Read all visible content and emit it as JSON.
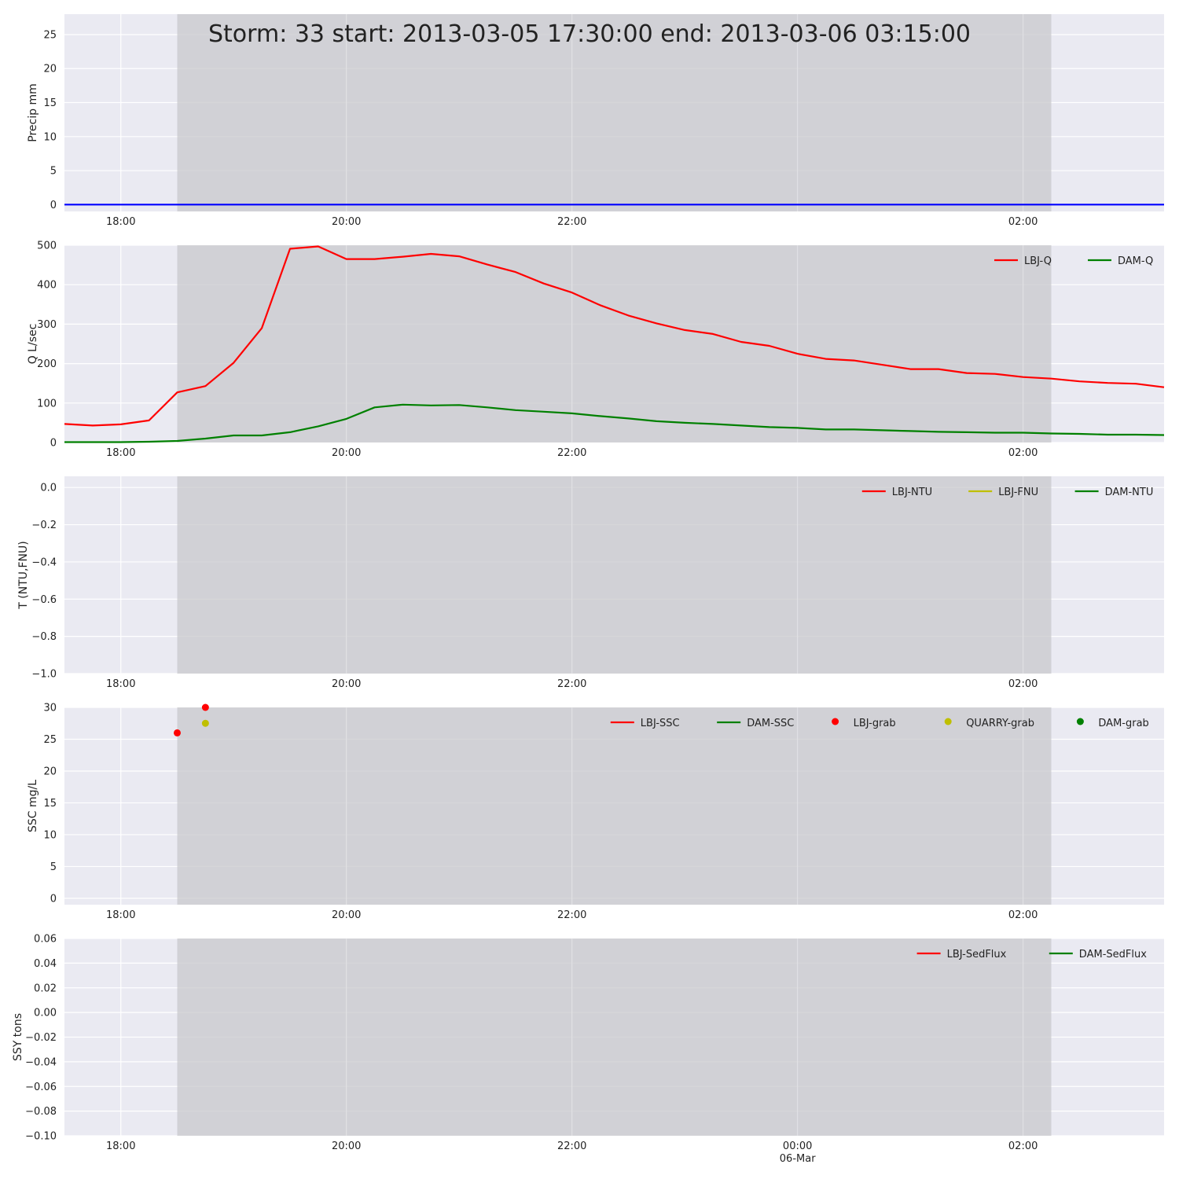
{
  "figure": {
    "title": "Storm: 33 start: 2013-03-05 17:30:00 end: 2013-03-06 03:15:00",
    "x_range": [
      "2013-03-05 17:30",
      "2013-03-06 03:15"
    ],
    "storm_window": [
      "2013-03-05 18:30",
      "2013-03-06 02:15"
    ],
    "x_ticks": [
      {
        "time": "2013-03-05 18:00",
        "label": "18:00"
      },
      {
        "time": "2013-03-05 20:00",
        "label": "20:00"
      },
      {
        "time": "2013-03-05 22:00",
        "label": "22:00"
      },
      {
        "time": "2013-03-06 00:00",
        "label": ""
      },
      {
        "time": "2013-03-06 02:00",
        "label": "02:00"
      }
    ],
    "bottom_extra_ticks": [
      {
        "time": "2013-03-06 00:00",
        "label": "00:00",
        "sublabel": "06-Mar"
      }
    ],
    "colors": {
      "background": "#eaeaf2",
      "shade": "#c8c8cc",
      "grid": "#ffffff",
      "red": "#ff0000",
      "green": "#008000",
      "yellow": "#bfbf00",
      "blue": "#0000ff"
    }
  },
  "chart_data": [
    {
      "type": "line",
      "ylabel": "Precip mm",
      "ylim": [
        -1,
        28
      ],
      "yticks": [
        0,
        5,
        10,
        15,
        20,
        25
      ],
      "legend": [],
      "series": [
        {
          "name": "",
          "color": "#0000ff",
          "x": [
            "2013-03-05 17:30",
            "2013-03-06 03:15"
          ],
          "y": [
            0,
            0
          ]
        }
      ]
    },
    {
      "type": "line",
      "ylabel": "Q L/sec",
      "ylim": [
        0,
        500
      ],
      "yticks": [
        0,
        100,
        200,
        300,
        400,
        500
      ],
      "legend": [
        "LBJ-Q",
        "DAM-Q"
      ],
      "series": [
        {
          "name": "LBJ-Q",
          "color": "#ff0000",
          "x": [
            "2013-03-05 17:30",
            "2013-03-05 17:45",
            "2013-03-05 18:00",
            "2013-03-05 18:15",
            "2013-03-05 18:30",
            "2013-03-05 18:45",
            "2013-03-05 19:00",
            "2013-03-05 19:15",
            "2013-03-05 19:30",
            "2013-03-05 19:45",
            "2013-03-05 20:00",
            "2013-03-05 20:15",
            "2013-03-05 20:30",
            "2013-03-05 20:45",
            "2013-03-05 21:00",
            "2013-03-05 21:15",
            "2013-03-05 21:30",
            "2013-03-05 21:45",
            "2013-03-05 22:00",
            "2013-03-05 22:15",
            "2013-03-05 22:30",
            "2013-03-05 22:45",
            "2013-03-05 23:00",
            "2013-03-05 23:15",
            "2013-03-05 23:30",
            "2013-03-05 23:45",
            "2013-03-06 00:00",
            "2013-03-06 00:15",
            "2013-03-06 00:30",
            "2013-03-06 00:45",
            "2013-03-06 01:00",
            "2013-03-06 01:15",
            "2013-03-06 01:30",
            "2013-03-06 01:45",
            "2013-03-06 02:00",
            "2013-03-06 02:15",
            "2013-03-06 02:30",
            "2013-03-06 02:45",
            "2013-03-06 03:00",
            "2013-03-06 03:15"
          ],
          "y": [
            47,
            43,
            46,
            56,
            127,
            143,
            202,
            290,
            491,
            497,
            465,
            465,
            471,
            478,
            472,
            451,
            432,
            403,
            380,
            348,
            322,
            302,
            285,
            275,
            255,
            245,
            225,
            212,
            208,
            197,
            186,
            186,
            176,
            174,
            166,
            162,
            155,
            151,
            149,
            140
          ]
        },
        {
          "name": "DAM-Q",
          "color": "#008000",
          "x": [
            "2013-03-05 17:30",
            "2013-03-05 17:45",
            "2013-03-05 18:00",
            "2013-03-05 18:15",
            "2013-03-05 18:30",
            "2013-03-05 18:45",
            "2013-03-05 19:00",
            "2013-03-05 19:15",
            "2013-03-05 19:30",
            "2013-03-05 19:45",
            "2013-03-05 20:00",
            "2013-03-05 20:15",
            "2013-03-05 20:30",
            "2013-03-05 20:45",
            "2013-03-05 21:00",
            "2013-03-05 21:15",
            "2013-03-05 21:30",
            "2013-03-05 21:45",
            "2013-03-05 22:00",
            "2013-03-05 22:15",
            "2013-03-05 22:30",
            "2013-03-05 22:45",
            "2013-03-05 23:00",
            "2013-03-05 23:15",
            "2013-03-05 23:30",
            "2013-03-05 23:45",
            "2013-03-06 00:00",
            "2013-03-06 00:15",
            "2013-03-06 00:30",
            "2013-03-06 00:45",
            "2013-03-06 01:00",
            "2013-03-06 01:15",
            "2013-03-06 01:30",
            "2013-03-06 01:45",
            "2013-03-06 02:00",
            "2013-03-06 02:15",
            "2013-03-06 02:30",
            "2013-03-06 02:45",
            "2013-03-06 03:00",
            "2013-03-06 03:15"
          ],
          "y": [
            1,
            1,
            1,
            2,
            4,
            10,
            18,
            18,
            26,
            41,
            60,
            89,
            96,
            94,
            95,
            89,
            82,
            78,
            74,
            67,
            61,
            54,
            50,
            47,
            43,
            39,
            37,
            33,
            33,
            31,
            29,
            27,
            26,
            25,
            25,
            23,
            22,
            20,
            20,
            19
          ]
        }
      ]
    },
    {
      "type": "line",
      "ylabel": "T (NTU,FNU)",
      "ylim": [
        -1.0,
        0.06
      ],
      "yticks": [
        -1.0,
        -0.8,
        -0.6,
        -0.4,
        -0.2,
        0.0
      ],
      "ytick_labels": [
        "−1.0",
        "−0.8",
        "−0.6",
        "−0.4",
        "−0.2",
        "0.0"
      ],
      "legend": [
        "LBJ-NTU",
        "LBJ-FNU",
        "DAM-NTU"
      ],
      "series": [
        {
          "name": "LBJ-NTU",
          "color": "#ff0000",
          "x": [],
          "y": []
        },
        {
          "name": "LBJ-FNU",
          "color": "#bfbf00",
          "x": [],
          "y": []
        },
        {
          "name": "DAM-NTU",
          "color": "#008000",
          "x": [],
          "y": []
        }
      ]
    },
    {
      "type": "scatter",
      "ylabel": "SSC mg/L",
      "ylim": [
        -1,
        30
      ],
      "yticks": [
        0,
        5,
        10,
        15,
        20,
        25,
        30
      ],
      "legend": [
        "LBJ-SSC",
        "DAM-SSC",
        "LBJ-grab",
        "QUARRY-grab",
        "DAM-grab"
      ],
      "series": [
        {
          "name": "LBJ-SSC",
          "color": "#ff0000",
          "kind": "line",
          "x": [],
          "y": []
        },
        {
          "name": "DAM-SSC",
          "color": "#008000",
          "kind": "line",
          "x": [],
          "y": []
        },
        {
          "name": "LBJ-grab",
          "color": "#ff0000",
          "kind": "points",
          "x": [
            "2013-03-05 18:30",
            "2013-03-05 18:45"
          ],
          "y": [
            26,
            30
          ]
        },
        {
          "name": "QUARRY-grab",
          "color": "#bfbf00",
          "kind": "points",
          "x": [
            "2013-03-05 18:45"
          ],
          "y": [
            27.5
          ]
        },
        {
          "name": "DAM-grab",
          "color": "#008000",
          "kind": "points",
          "x": [],
          "y": []
        }
      ]
    },
    {
      "type": "line",
      "ylabel": "SSY tons",
      "ylim": [
        -0.1,
        0.06
      ],
      "yticks": [
        -0.1,
        -0.08,
        -0.06,
        -0.04,
        -0.02,
        0.0,
        0.02,
        0.04,
        0.06
      ],
      "ytick_labels": [
        "−0.10",
        "−0.08",
        "−0.06",
        "−0.04",
        "−0.02",
        "0.00",
        "0.02",
        "0.04",
        "0.06"
      ],
      "legend": [
        "LBJ-SedFlux",
        "DAM-SedFlux"
      ],
      "series": [
        {
          "name": "LBJ-SedFlux",
          "color": "#ff0000",
          "x": [],
          "y": []
        },
        {
          "name": "DAM-SedFlux",
          "color": "#008000",
          "x": [],
          "y": []
        }
      ]
    }
  ]
}
